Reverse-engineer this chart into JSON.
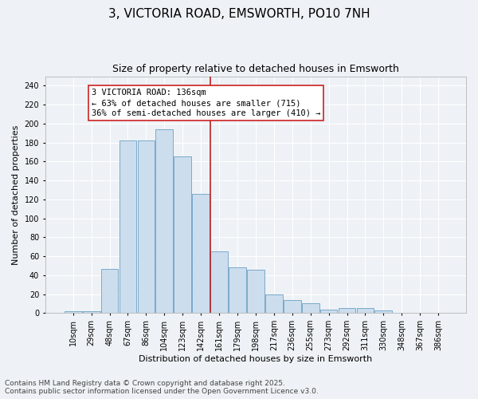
{
  "title": "3, VICTORIA ROAD, EMSWORTH, PO10 7NH",
  "subtitle": "Size of property relative to detached houses in Emsworth",
  "xlabel": "Distribution of detached houses by size in Emsworth",
  "ylabel": "Number of detached properties",
  "categories": [
    "10sqm",
    "29sqm",
    "48sqm",
    "67sqm",
    "86sqm",
    "104sqm",
    "123sqm",
    "142sqm",
    "161sqm",
    "179sqm",
    "198sqm",
    "217sqm",
    "236sqm",
    "255sqm",
    "273sqm",
    "292sqm",
    "311sqm",
    "330sqm",
    "348sqm",
    "367sqm",
    "386sqm"
  ],
  "bar_heights": [
    2,
    2,
    47,
    182,
    182,
    194,
    165,
    126,
    65,
    48,
    46,
    20,
    14,
    10,
    4,
    5,
    5,
    3,
    0,
    0,
    0
  ],
  "bar_color": "#ccdded",
  "bar_edge_color": "#7aaaca",
  "vline_x_index": 7,
  "vline_color": "#bb2222",
  "annotation_text": "3 VICTORIA ROAD: 136sqm\n← 63% of detached houses are smaller (715)\n36% of semi-detached houses are larger (410) →",
  "annotation_box_facecolor": "#ffffff",
  "annotation_box_edgecolor": "#cc2222",
  "ylim": [
    0,
    250
  ],
  "yticks": [
    0,
    20,
    40,
    60,
    80,
    100,
    120,
    140,
    160,
    180,
    200,
    220,
    240
  ],
  "background_color": "#eef2f6",
  "grid_color": "#ffffff",
  "footer": "Contains HM Land Registry data © Crown copyright and database right 2025.\nContains public sector information licensed under the Open Government Licence v3.0.",
  "title_fontsize": 11,
  "subtitle_fontsize": 9,
  "xlabel_fontsize": 8,
  "ylabel_fontsize": 8,
  "tick_fontsize": 7,
  "annotation_fontsize": 7.5,
  "footer_fontsize": 6.5
}
